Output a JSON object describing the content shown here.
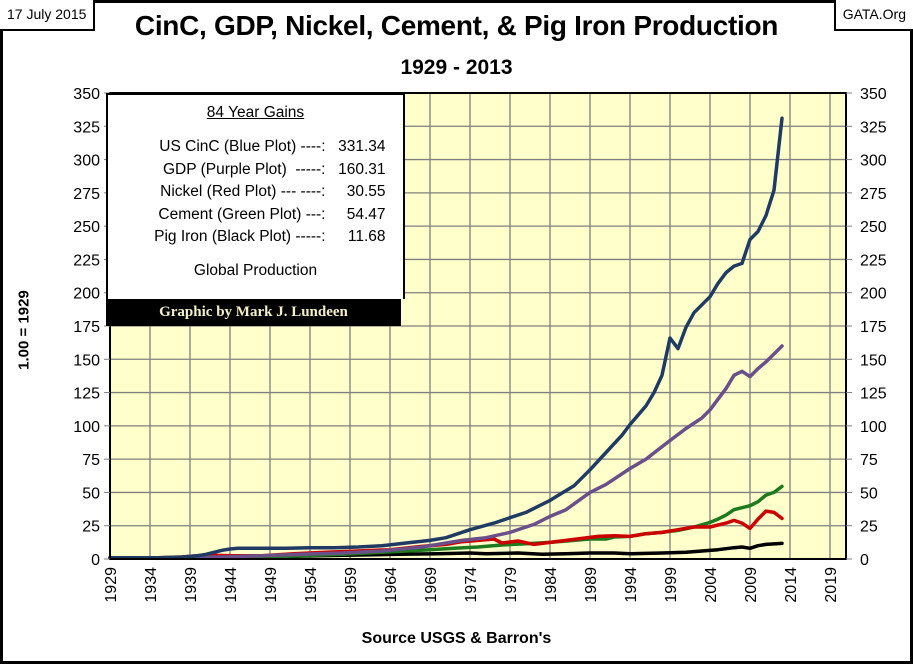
{
  "header": {
    "date": "17 July 2015",
    "site": "GATA.Org",
    "title": "CinC, GDP, Nickel, Cement, & Pig Iron Production",
    "subtitle": "1929 - 2013"
  },
  "legend": {
    "title": "84 Year Gains",
    "rows": [
      {
        "label": "US CinC (Blue Plot) ----:",
        "value": "331.34"
      },
      {
        "label": "GDP (Purple Plot)  -----:",
        "value": "160.31"
      },
      {
        "label": "Nickel (Red Plot) --- ----:",
        "value": "30.55"
      },
      {
        "label": "Cement (Green Plot) ---:",
        "value": "54.47"
      },
      {
        "label": "Pig Iron (Black Plot) -----:",
        "value": "11.68"
      }
    ],
    "note": "Global Production",
    "credit": "Graphic by Mark J. Lundeen"
  },
  "chart_data": {
    "type": "line",
    "title": "CinC, GDP, Nickel, Cement, & Pig Iron Production",
    "subtitle": "1929 - 2013",
    "xlabel": "Source USGS & Barron's",
    "ylabel": "1.00 = 1929",
    "xlim": [
      1929,
      2021
    ],
    "ylim": [
      0,
      350
    ],
    "x_ticks": [
      1929,
      1934,
      1939,
      1944,
      1949,
      1954,
      1959,
      1964,
      1969,
      1974,
      1979,
      1984,
      1989,
      1994,
      1999,
      2004,
      2009,
      2014,
      2019
    ],
    "y_ticks": [
      0,
      25,
      50,
      75,
      100,
      125,
      150,
      175,
      200,
      225,
      250,
      275,
      300,
      325,
      350
    ],
    "grid": true,
    "background": "#ffffcc",
    "secondary_y_axis": "right (mirror)",
    "series": [
      {
        "name": "US CinC",
        "color": "#1f3b63",
        "x": [
          1929,
          1932,
          1935,
          1938,
          1940,
          1941,
          1942,
          1943,
          1944,
          1945,
          1948,
          1951,
          1954,
          1957,
          1960,
          1963,
          1966,
          1969,
          1971,
          1974,
          1977,
          1979,
          1981,
          1984,
          1987,
          1989,
          1991,
          1993,
          1994,
          1996,
          1997,
          1998,
          1999,
          2000,
          2001,
          2002,
          2003,
          2004,
          2005,
          2006,
          2007,
          2008,
          2009,
          2010,
          2011,
          2012,
          2013
        ],
        "values": [
          1,
          1,
          1,
          1.5,
          2.5,
          3.5,
          5,
          6.5,
          7.5,
          8,
          8,
          8,
          8.5,
          8.5,
          9,
          10,
          12,
          14,
          16,
          22,
          27,
          31,
          35,
          44,
          55,
          67,
          80,
          93,
          101,
          115,
          125,
          138,
          166,
          158,
          174,
          185,
          191,
          197,
          207,
          215,
          220,
          222,
          240,
          246,
          258,
          277,
          331
        ]
      },
      {
        "name": "GDP",
        "color": "#6a4f8a",
        "x": [
          1929,
          1933,
          1938,
          1943,
          1948,
          1953,
          1958,
          1963,
          1968,
          1973,
          1976,
          1979,
          1982,
          1984,
          1986,
          1989,
          1991,
          1994,
          1996,
          1999,
          2001,
          2003,
          2004,
          2005,
          2006,
          2007,
          2008,
          2009,
          2010,
          2011,
          2012,
          2013
        ],
        "values": [
          1,
          0.7,
          1,
          1.5,
          2.5,
          3.5,
          4.5,
          6,
          9,
          14,
          16,
          20,
          26,
          32,
          37,
          50,
          56,
          68,
          75,
          89,
          98,
          106,
          112,
          120,
          128,
          138,
          141,
          137,
          143,
          148,
          154,
          160
        ]
      },
      {
        "name": "Nickel",
        "color": "#cc0000",
        "x": [
          1929,
          1932,
          1935,
          1938,
          1941,
          1944,
          1948,
          1952,
          1956,
          1960,
          1964,
          1968,
          1971,
          1973,
          1975,
          1977,
          1978,
          1980,
          1982,
          1984,
          1986,
          1988,
          1990,
          1992,
          1994,
          1996,
          1998,
          2000,
          2002,
          2004,
          2006,
          2007,
          2008,
          2009,
          2010,
          2011,
          2012,
          2013
        ],
        "values": [
          1,
          0.6,
          1,
          1.5,
          3,
          2.5,
          2.5,
          4,
          5,
          6,
          7,
          9.5,
          11,
          13,
          14,
          15,
          12,
          13.5,
          11,
          12.5,
          14,
          15.5,
          17,
          17.5,
          17,
          19,
          20,
          22,
          24,
          24,
          27,
          29,
          27,
          23,
          30,
          36,
          35,
          30.5
        ]
      },
      {
        "name": "Cement",
        "color": "#1e7a1e",
        "x": [
          1929,
          1933,
          1938,
          1943,
          1948,
          1953,
          1958,
          1963,
          1966,
          1969,
          1972,
          1975,
          1978,
          1981,
          1984,
          1987,
          1989,
          1991,
          1992,
          1994,
          1996,
          1998,
          2000,
          2002,
          2004,
          2005,
          2006,
          2007,
          2008,
          2009,
          2010,
          2011,
          2012,
          2013
        ],
        "values": [
          1,
          0.7,
          1,
          1,
          1.5,
          2.5,
          3.5,
          5,
          6,
          7,
          8,
          9,
          10.5,
          11.5,
          12.5,
          14,
          15,
          15,
          16.5,
          17,
          19,
          20,
          21.5,
          24,
          27.5,
          30,
          33,
          37,
          38.5,
          40,
          43,
          48,
          50,
          54.5
        ]
      },
      {
        "name": "Pig Iron",
        "color": "#000000",
        "x": [
          1929,
          1932,
          1935,
          1938,
          1942,
          1946,
          1950,
          1955,
          1960,
          1965,
          1970,
          1974,
          1976,
          1980,
          1983,
          1986,
          1989,
          1992,
          1994,
          1998,
          2001,
          2003,
          2005,
          2007,
          2008,
          2009,
          2010,
          2011,
          2013
        ],
        "values": [
          1,
          0.5,
          0.8,
          1,
          1.5,
          1.3,
          1.8,
          2.5,
          3,
          3.5,
          4,
          4.5,
          4,
          4.5,
          3.5,
          4,
          4.5,
          4.5,
          4,
          4.5,
          5,
          6,
          7,
          8.5,
          9,
          8,
          10,
          11,
          11.68
        ]
      }
    ],
    "gains_84_year": {
      "US CinC": 331.34,
      "GDP": 160.31,
      "Nickel": 30.55,
      "Cement": 54.47,
      "Pig Iron": 11.68
    }
  }
}
